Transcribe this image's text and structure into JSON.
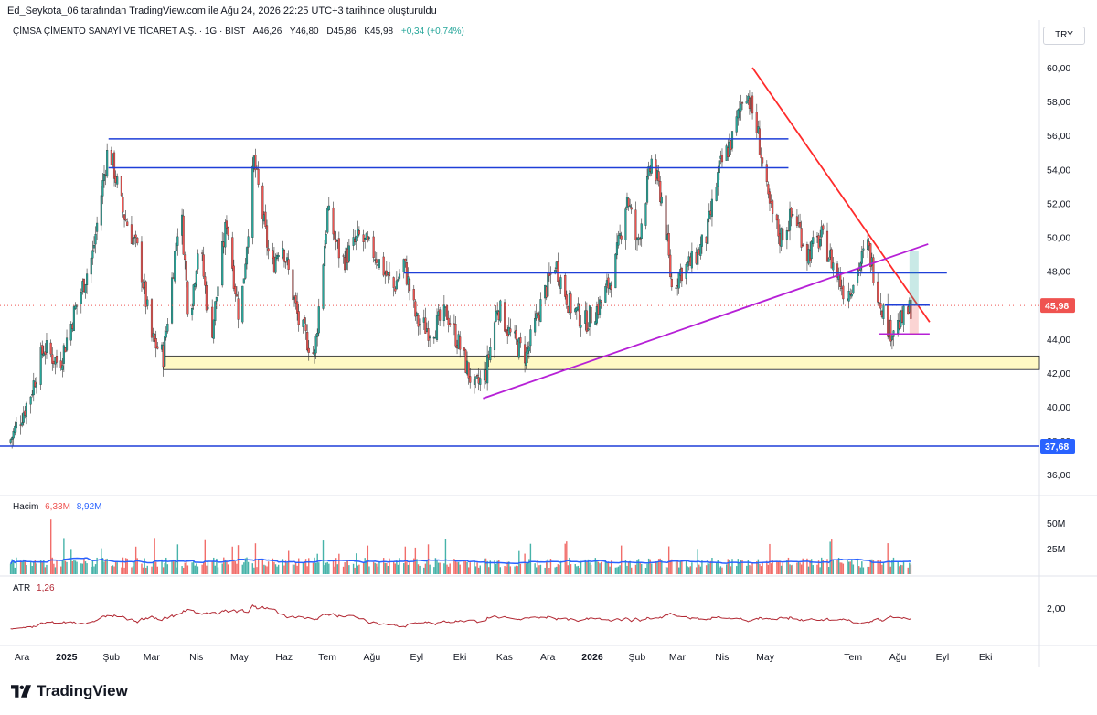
{
  "header": {
    "publish_line": "Ed_Seykota_06 tarafından TradingView.com ile Ağu 24, 2026 22:25 UTC+3 tarihinde oluşturuldu",
    "symbol": "ÇİMSA ÇİMENTO SANAYİ VE TİCARET A.Ş. · 1G · BIST",
    "open": "A46,26",
    "high": "Y46,80",
    "low": "D45,86",
    "close": "K45,98",
    "change": "+0,34 (+0,74%)",
    "currency": "TRY"
  },
  "volume_pane": {
    "label": "Hacim",
    "value1": "6,33M",
    "value2": "8,92M",
    "ticks": [
      "50M",
      "25M"
    ],
    "up_color": "#26a69a",
    "down_color": "#ef5350",
    "ma_color": "#2962ff"
  },
  "atr_pane": {
    "label": "ATR",
    "value": "1,26",
    "tick": "2,00",
    "color": "#b22833"
  },
  "price_badges": {
    "last": "45,98",
    "line": "37,68"
  },
  "branding": {
    "name": "TradingView"
  },
  "colors": {
    "up": "#26a69a",
    "down": "#ef5350",
    "level_line": "#1e3fd8",
    "trendline_red": "#ff2b2b",
    "trendline_purple": "#b620d6",
    "support_zone": "#fff9c4"
  },
  "chart_data": {
    "type": "candlestick",
    "y_axis": {
      "ticks": [
        60,
        58,
        56,
        54,
        52,
        50,
        48,
        46,
        44,
        42,
        40,
        38,
        36
      ],
      "labels": [
        "60,00",
        "58,00",
        "56,00",
        "54,00",
        "52,00",
        "50,00",
        "48,00",
        "46,00",
        "44,00",
        "42,00",
        "40,00",
        "38,00",
        "36,00"
      ],
      "range": [
        35.2,
        62.9
      ]
    },
    "x_axis": {
      "labels": [
        "Ara",
        "2025",
        "Şub",
        "Mar",
        "Nis",
        "May",
        "Haz",
        "Tem",
        "Ağu",
        "Eyl",
        "Eki",
        "Kas",
        "Ara",
        "2026",
        "Şub",
        "Mar",
        "Nis",
        "May",
        "Tem",
        "Ağu",
        "Eyl",
        "Eki"
      ],
      "bold": [
        "2025",
        "2026"
      ]
    },
    "price_path": [
      [
        "2024-12-01",
        37.9
      ],
      [
        "2024-12-15",
        40.5
      ],
      [
        "2024-12-25",
        43.5
      ],
      [
        "2025-01-05",
        42.5
      ],
      [
        "2025-01-15",
        45.5
      ],
      [
        "2025-01-28",
        49
      ],
      [
        "2025-02-08",
        55.5
      ],
      [
        "2025-02-18",
        51.5
      ],
      [
        "2025-03-01",
        49
      ],
      [
        "2025-03-10",
        44
      ],
      [
        "2025-03-18",
        43
      ],
      [
        "2025-03-30",
        52
      ],
      [
        "2025-04-05",
        45
      ],
      [
        "2025-04-12",
        50
      ],
      [
        "2025-04-20",
        44
      ],
      [
        "2025-05-01",
        51
      ],
      [
        "2025-05-10",
        45
      ],
      [
        "2025-05-20",
        54.5
      ],
      [
        "2025-06-01",
        48
      ],
      [
        "2025-06-08",
        50
      ],
      [
        "2025-06-20",
        45
      ],
      [
        "2025-07-01",
        43
      ],
      [
        "2025-07-10",
        51.5
      ],
      [
        "2025-07-20",
        48.5
      ],
      [
        "2025-08-01",
        50
      ],
      [
        "2025-08-12",
        49
      ],
      [
        "2025-08-25",
        47
      ],
      [
        "2025-09-01",
        48.5
      ],
      [
        "2025-09-10",
        45
      ],
      [
        "2025-09-20",
        44.5
      ],
      [
        "2025-10-01",
        45.5
      ],
      [
        "2025-10-10",
        43.5
      ],
      [
        "2025-10-20",
        41
      ],
      [
        "2025-10-28",
        42
      ],
      [
        "2025-11-05",
        46
      ],
      [
        "2025-11-15",
        44
      ],
      [
        "2025-11-25",
        43
      ],
      [
        "2025-12-05",
        46
      ],
      [
        "2025-12-15",
        48.5
      ],
      [
        "2025-12-25",
        46
      ],
      [
        "2026-01-05",
        45
      ],
      [
        "2026-01-15",
        46
      ],
      [
        "2026-01-25",
        48
      ],
      [
        "2026-02-03",
        52.5
      ],
      [
        "2026-02-10",
        49.5
      ],
      [
        "2026-02-20",
        54.5
      ],
      [
        "2026-02-28",
        52
      ],
      [
        "2026-03-06",
        47
      ],
      [
        "2026-03-12",
        48
      ],
      [
        "2026-03-20",
        48.5
      ],
      [
        "2026-03-30",
        50
      ],
      [
        "2026-04-08",
        54
      ],
      [
        "2026-04-18",
        56
      ],
      [
        "2026-04-26",
        59
      ],
      [
        "2026-05-05",
        56
      ],
      [
        "2026-05-12",
        52
      ],
      [
        "2026-05-20",
        50
      ],
      [
        "2026-05-30",
        51.5
      ],
      [
        "2026-06-08",
        49
      ],
      [
        "2026-06-18",
        50
      ],
      [
        "2026-06-28",
        48
      ],
      [
        "2026-07-05",
        46.5
      ],
      [
        "2026-07-10",
        47.5
      ],
      [
        "2026-07-20",
        49.5
      ],
      [
        "2026-07-28",
        46.5
      ],
      [
        "2026-08-04",
        44.5
      ],
      [
        "2026-08-12",
        45
      ],
      [
        "2026-08-20",
        46
      ]
    ],
    "horizontal_levels": [
      55.8,
      54.1,
      47.9,
      37.68
    ],
    "support_zone": [
      42.2,
      43.0
    ],
    "red_trendline": {
      "from": [
        "2026-05-01",
        60.0
      ],
      "to": [
        "2026-09-01",
        45.0
      ]
    },
    "purple_trendline": {
      "from": [
        "2025-10-26",
        40.5
      ],
      "to": [
        "2026-08-31",
        49.6
      ]
    },
    "range_box": {
      "top": 46.0,
      "bottom": 44.3,
      "from": "2026-08-01",
      "to": "2026-08-31"
    },
    "last_price": 45.98
  }
}
